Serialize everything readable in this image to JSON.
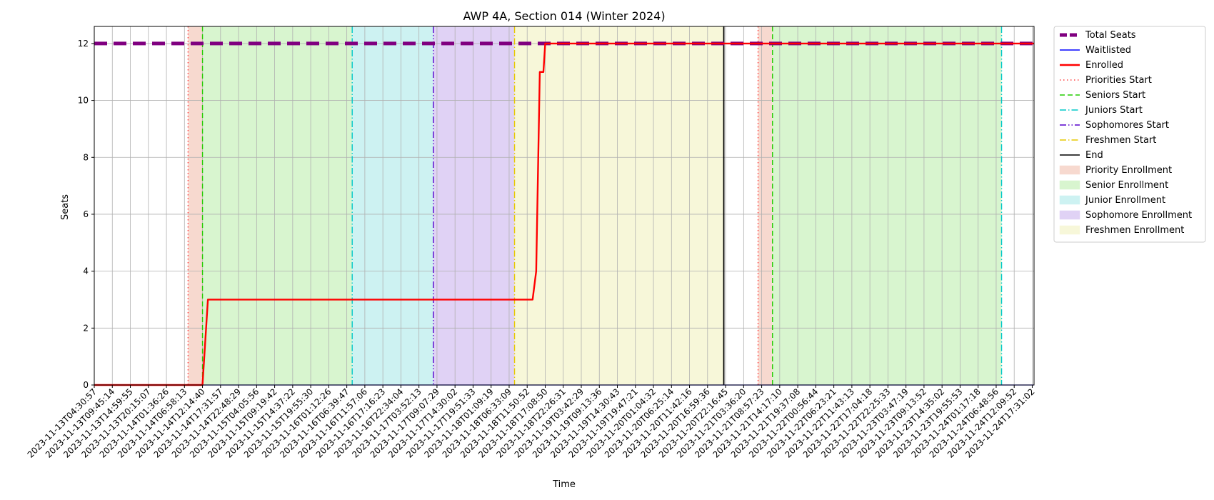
{
  "chart_data": {
    "type": "line",
    "title": "AWP 4A, Section 014 (Winter 2024)",
    "xlabel": "Time",
    "ylabel": "Seats",
    "ylim": [
      0,
      12.6
    ],
    "yticks": [
      0,
      2,
      4,
      6,
      8,
      10,
      12
    ],
    "x_tick_labels": [
      "2023-11-13T04:30:57",
      "2023-11-13T09:45:14",
      "2023-11-13T14:59:55",
      "2023-11-13T20:15:07",
      "2023-11-14T01:36:26",
      "2023-11-14T06:58:13",
      "2023-11-14T12:14:40",
      "2023-11-14T17:31:57",
      "2023-11-14T22:48:29",
      "2023-11-15T04:05:56",
      "2023-11-15T09:19:42",
      "2023-11-15T14:37:22",
      "2023-11-15T19:55:30",
      "2023-11-16T01:12:26",
      "2023-11-16T06:39:47",
      "2023-11-16T11:57:06",
      "2023-11-16T17:16:23",
      "2023-11-16T22:34:04",
      "2023-11-17T03:52:13",
      "2023-11-17T09:07:29",
      "2023-11-17T14:30:02",
      "2023-11-17T19:51:33",
      "2023-11-18T01:09:19",
      "2023-11-18T06:33:09",
      "2023-11-18T11:50:52",
      "2023-11-18T17:08:50",
      "2023-11-18T22:26:31",
      "2023-11-19T03:42:29",
      "2023-11-19T09:13:36",
      "2023-11-19T14:30:43",
      "2023-11-19T19:47:21",
      "2023-11-20T01:04:32",
      "2023-11-20T06:25:14",
      "2023-11-20T11:42:16",
      "2023-11-20T16:59:36",
      "2023-11-20T22:16:45",
      "2023-11-21T03:36:20",
      "2023-11-21T08:57:23",
      "2023-11-21T14:17:10",
      "2023-11-21T19:37:08",
      "2023-11-22T00:56:44",
      "2023-11-22T06:23:21",
      "2023-11-22T11:43:13",
      "2023-11-22T17:04:18",
      "2023-11-22T22:25:33",
      "2023-11-23T03:47:19",
      "2023-11-23T09:13:52",
      "2023-11-23T14:35:02",
      "2023-11-23T19:55:53",
      "2023-11-24T01:17:18",
      "2023-11-24T06:48:56",
      "2023-11-24T12:09:52",
      "2023-11-24T17:31:02"
    ],
    "x_range": [
      0,
      52.1
    ],
    "series": [
      {
        "name": "Total Seats",
        "color": "#800080",
        "style": "dashed-thick",
        "points": [
          [
            0,
            12
          ],
          [
            52.1,
            12
          ]
        ]
      },
      {
        "name": "Waitlisted",
        "color": "#0000ff",
        "style": "solid-thin",
        "points": [
          [
            0,
            0
          ],
          [
            52.1,
            0
          ]
        ]
      },
      {
        "name": "Enrolled",
        "color": "#ff0000",
        "style": "solid-thick",
        "points": [
          [
            0,
            0
          ],
          [
            6.0,
            0
          ],
          [
            6.3,
            3
          ],
          [
            24.3,
            3
          ],
          [
            24.5,
            4
          ],
          [
            24.7,
            11
          ],
          [
            24.9,
            11
          ],
          [
            25.0,
            12
          ],
          [
            52.1,
            12
          ]
        ]
      }
    ],
    "markers": [
      {
        "name": "Priorities Start",
        "x": 5.2,
        "color": "#ff4040",
        "style": "dotted"
      },
      {
        "name": "Seniors Start",
        "x": 6.0,
        "color": "#22cc00",
        "style": "dashed"
      },
      {
        "name": "Juniors Start",
        "x": 14.3,
        "color": "#00c8c8",
        "style": "dashdot"
      },
      {
        "name": "Sophomores Start",
        "x": 18.8,
        "color": "#5500cc",
        "style": "dashdotdot"
      },
      {
        "name": "Freshmen Start",
        "x": 23.3,
        "color": "#e6c800",
        "style": "dashdot"
      },
      {
        "name": "End",
        "x": 34.9,
        "color": "#000000",
        "style": "solid"
      },
      {
        "name": "Priorities Start",
        "x": 36.8,
        "color": "#ff4040",
        "style": "dotted"
      },
      {
        "name": "Seniors Start",
        "x": 37.6,
        "color": "#22cc00",
        "style": "dashed"
      },
      {
        "name": "Juniors Start",
        "x": 50.3,
        "color": "#00c8c8",
        "style": "dashdot"
      }
    ],
    "regions": [
      {
        "name": "Priority Enrollment",
        "x0": 5.2,
        "x1": 6.0,
        "color": "#f7d9cf"
      },
      {
        "name": "Senior Enrollment",
        "x0": 6.0,
        "x1": 14.3,
        "color": "#d8f5cf"
      },
      {
        "name": "Junior Enrollment",
        "x0": 14.3,
        "x1": 18.8,
        "color": "#cdf2f2"
      },
      {
        "name": "Sophomore Enrollment",
        "x0": 18.8,
        "x1": 23.3,
        "color": "#e0d2f5"
      },
      {
        "name": "Freshmen Enrollment",
        "x0": 23.3,
        "x1": 34.9,
        "color": "#f7f7d9"
      },
      {
        "name": "Priority Enrollment",
        "x0": 36.8,
        "x1": 37.6,
        "color": "#f7d9cf"
      },
      {
        "name": "Senior Enrollment",
        "x0": 37.6,
        "x1": 50.3,
        "color": "#d8f5cf"
      }
    ],
    "legend": {
      "placement": "outside-top-right",
      "entries": [
        {
          "label": "Total Seats",
          "kind": "line",
          "color": "#800080",
          "style": "dashed-thick"
        },
        {
          "label": "Waitlisted",
          "kind": "line",
          "color": "#0000ff",
          "style": "solid-thin"
        },
        {
          "label": "Enrolled",
          "kind": "line",
          "color": "#ff0000",
          "style": "solid-thick"
        },
        {
          "label": "Priorities Start",
          "kind": "line",
          "color": "#ff4040",
          "style": "dotted"
        },
        {
          "label": "Seniors Start",
          "kind": "line",
          "color": "#22cc00",
          "style": "dashed"
        },
        {
          "label": "Juniors Start",
          "kind": "line",
          "color": "#00c8c8",
          "style": "dashdot"
        },
        {
          "label": "Sophomores Start",
          "kind": "line",
          "color": "#5500cc",
          "style": "dashdotdot"
        },
        {
          "label": "Freshmen Start",
          "kind": "line",
          "color": "#e6c800",
          "style": "dashdot"
        },
        {
          "label": "End",
          "kind": "line",
          "color": "#000000",
          "style": "solid"
        },
        {
          "label": "Priority Enrollment",
          "kind": "patch",
          "color": "#f7d9cf"
        },
        {
          "label": "Senior Enrollment",
          "kind": "patch",
          "color": "#d8f5cf"
        },
        {
          "label": "Junior Enrollment",
          "kind": "patch",
          "color": "#cdf2f2"
        },
        {
          "label": "Sophomore Enrollment",
          "kind": "patch",
          "color": "#e0d2f5"
        },
        {
          "label": "Freshmen Enrollment",
          "kind": "patch",
          "color": "#f7f7d9"
        }
      ]
    },
    "grid": true
  }
}
